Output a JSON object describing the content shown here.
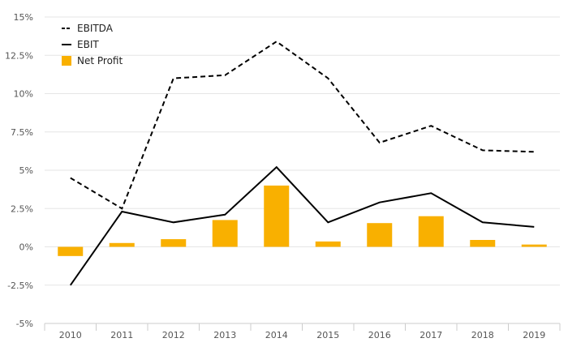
{
  "chart_data": {
    "type": "bar",
    "categories": [
      "2010",
      "2011",
      "2012",
      "2013",
      "2014",
      "2015",
      "2016",
      "2017",
      "2018",
      "2019"
    ],
    "ylim": [
      -5,
      15
    ],
    "yticks": [
      -5,
      -2.5,
      0,
      2.5,
      5,
      7.5,
      10,
      12.5,
      15
    ],
    "ytick_labels": [
      "-5%",
      "-2.5%",
      "0%",
      "2.5%",
      "5%",
      "7.5%",
      "10%",
      "12.5%",
      "15%"
    ],
    "grid": true,
    "legend_position": "top-left",
    "series": [
      {
        "name": "EBITDA",
        "kind": "line",
        "style": "dashed",
        "color": "#000000",
        "values": [
          4.5,
          2.5,
          11.0,
          11.2,
          13.4,
          11.0,
          6.8,
          7.9,
          6.3,
          6.2
        ]
      },
      {
        "name": "EBIT",
        "kind": "line",
        "style": "solid",
        "color": "#000000",
        "values": [
          -2.5,
          2.3,
          1.6,
          2.1,
          5.2,
          1.6,
          2.9,
          3.5,
          1.6,
          1.3
        ]
      },
      {
        "name": "Net Profit",
        "kind": "bar",
        "color": "#f9b000",
        "values": [
          -0.6,
          0.25,
          0.5,
          1.75,
          4.0,
          0.35,
          1.55,
          2.0,
          0.45,
          0.15
        ]
      }
    ]
  }
}
